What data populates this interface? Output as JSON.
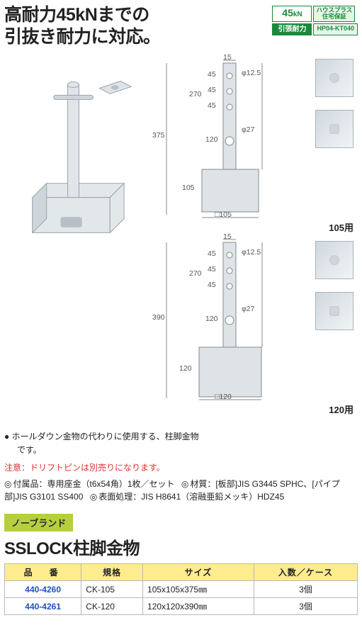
{
  "headline": "高耐力45kNまでの\n引抜き耐力に対応。",
  "badges": {
    "kn_value": "45",
    "kn_unit": "kN",
    "house": "ハウスプラス\n住宅保証",
    "pull": "引張耐力",
    "code": "HP04-KT040"
  },
  "diagrams": [
    {
      "caption": "105用",
      "top_offset": "15",
      "seg1": "45",
      "seg2": "45",
      "seg3": "45",
      "shaft_upper": "270",
      "shaft_to_base": "120",
      "total_h": "375",
      "base_h": "105",
      "base_sq": "□105",
      "hole_small": "φ12.5",
      "hole_big": "φ27",
      "colors": {
        "line": "#7a858c",
        "fill": "#d9e0e4",
        "text": "#555"
      }
    },
    {
      "caption": "120用",
      "top_offset": "15",
      "seg1": "45",
      "seg2": "45",
      "seg3": "45",
      "shaft_upper": "270",
      "shaft_to_base": "120",
      "total_h": "390",
      "base_h": "120",
      "base_sq": "□120",
      "hole_small": "φ12.5",
      "hole_big": "φ27",
      "colors": {
        "line": "#7a858c",
        "fill": "#d9e0e4",
        "text": "#555"
      }
    }
  ],
  "notes": {
    "bullet_line1": "ホールダウン金物の代わりに使用する、柱脚金物",
    "bullet_line2": "です。"
  },
  "warning": "注意：ドリフトピンは別売りになります。",
  "specs": {
    "accessories": "付属品：専用座金（t6x54角）1枚／セット",
    "material": "材質：[板部]JIS G3445 SPHC、[パイプ部]JIS G3101 SS400",
    "surface": "表面処理：JIS H8641（溶融亜鉛メッキ）HDZ45"
  },
  "brand_tag": "ノーブランド",
  "product_name": "SSLOCK柱脚金物",
  "table": {
    "headers": [
      "品　番",
      "規格",
      "サイズ",
      "入数／ケース"
    ],
    "rows": [
      {
        "pn": "440-4260",
        "std": "CK-105",
        "size": "105x105x375㎜",
        "qty": "3個"
      },
      {
        "pn": "440-4261",
        "std": "CK-120",
        "size": "120x120x390㎜",
        "qty": "3個"
      }
    ]
  },
  "colors": {
    "accent_green": "#1b8a3a",
    "brand_bg": "#b6cf3f",
    "table_header_bg": "#ffec8f",
    "link_blue": "#1f4fbf",
    "warn_red": "#d33"
  }
}
